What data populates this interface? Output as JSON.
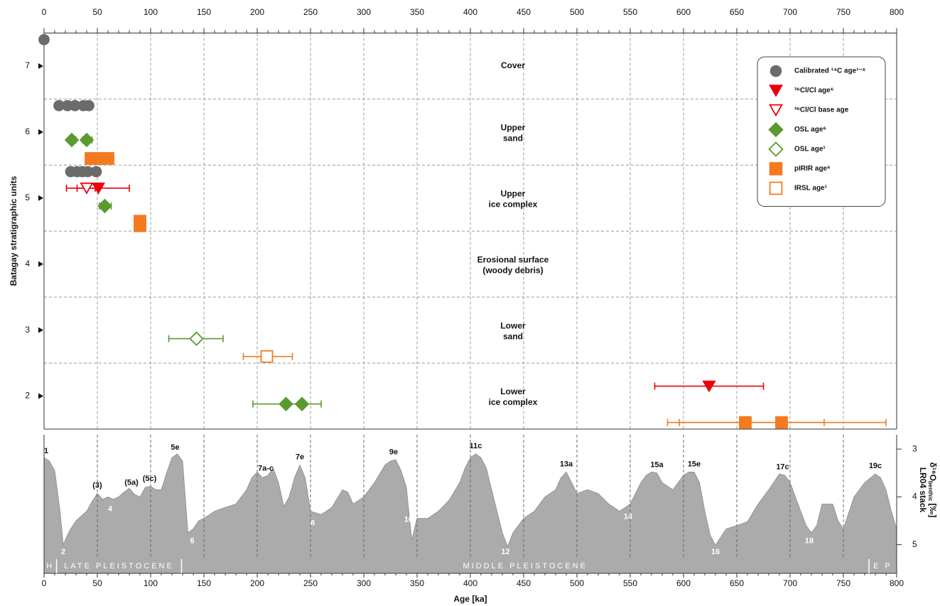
{
  "chart_data": [
    {
      "type": "scatter",
      "ylabel": "Batagay stratigraphic units",
      "xlim": [
        0,
        800
      ],
      "xticks": [
        0,
        50,
        100,
        150,
        200,
        250,
        300,
        350,
        400,
        450,
        500,
        550,
        600,
        650,
        700,
        750,
        800
      ],
      "ylim": [
        1.5,
        7.5
      ],
      "yticks": [
        2,
        3,
        4,
        5,
        6,
        7
      ],
      "unit_boundaries": [
        2.5,
        3.5,
        4.5,
        5.5,
        6.5
      ],
      "grid": true,
      "legend": "upper right",
      "units": [
        {
          "lines": [
            "Cover"
          ],
          "y": 7
        },
        {
          "lines": [
            "Upper",
            "sand"
          ],
          "y": 6
        },
        {
          "lines": [
            "Upper",
            "ice complex"
          ],
          "y": 5
        },
        {
          "lines": [
            "Erosional surface",
            "(woody debris)"
          ],
          "y": 4
        },
        {
          "lines": [
            "Lower",
            "sand"
          ],
          "y": 3
        },
        {
          "lines": [
            "Lower",
            "ice complex"
          ],
          "y": 2
        }
      ],
      "series": [
        {
          "name": "Calibrated ¹⁴C age¹⁻⁶",
          "marker": "circle",
          "filled": true,
          "color": "#6b6b6b",
          "x": [
            0,
            14,
            22,
            29,
            37,
            42,
            25,
            31,
            36,
            41,
            49
          ],
          "y": [
            7.4,
            6.4,
            6.4,
            6.4,
            6.4,
            6.4,
            5.4,
            5.4,
            5.4,
            5.4,
            5.4
          ]
        },
        {
          "name": "³⁶Cl/Cl age⁶",
          "marker": "triangle",
          "filled": true,
          "color": "#e8000b",
          "x": [
            51,
            624
          ],
          "y": [
            5.15,
            2.15
          ],
          "xmin": [
            21,
            573
          ],
          "xmax": [
            80,
            675
          ]
        },
        {
          "name": "³⁶Cl/Cl base age",
          "marker": "triangle",
          "filled": false,
          "color": "#e8000b",
          "x": [
            40
          ],
          "y": [
            5.15
          ],
          "xmin": [
            31
          ],
          "xmax": [
            48
          ]
        },
        {
          "name": "OSL age⁶",
          "marker": "diamond",
          "filled": true,
          "color": "#5b9a2e",
          "x": [
            26,
            40,
            57,
            227,
            242
          ],
          "y": [
            5.88,
            5.88,
            4.88,
            1.88,
            1.88
          ],
          "xmin": [
            23,
            36,
            52,
            196,
            226
          ],
          "xmax": [
            30,
            45,
            63,
            240,
            260
          ]
        },
        {
          "name": "OSL age¹",
          "marker": "diamond",
          "filled": false,
          "color": "#5b9a2e",
          "x": [
            143
          ],
          "y": [
            2.87
          ],
          "xmin": [
            117
          ],
          "xmax": [
            168
          ]
        },
        {
          "name": "pIRIR age⁶",
          "marker": "square",
          "filled": true,
          "color": "#f47a20",
          "x": [
            44,
            52,
            60,
            90,
            90,
            658,
            692
          ],
          "y": [
            5.6,
            5.6,
            5.6,
            4.65,
            4.58,
            1.6,
            1.6
          ],
          "xmin": [
            40,
            48,
            56,
            null,
            null,
            585,
            596
          ],
          "xmax": [
            48,
            56,
            65,
            null,
            null,
            732,
            790
          ]
        },
        {
          "name": "IRSL age¹",
          "marker": "square",
          "filled": false,
          "color": "#f47a20",
          "x": [
            209
          ],
          "y": [
            2.6
          ],
          "xmin": [
            187
          ],
          "xmax": [
            233
          ]
        }
      ]
    },
    {
      "type": "area",
      "ylabel": [
        "LR04 stack",
        "δ¹⁸O",
        "benthic",
        "[‰]"
      ],
      "xlabel": "Age [ka]",
      "xlim": [
        0,
        800
      ],
      "xticks": [
        0,
        50,
        100,
        150,
        200,
        250,
        300,
        350,
        400,
        450,
        500,
        550,
        600,
        650,
        700,
        750,
        800
      ],
      "ylim": [
        2.7,
        5.6
      ],
      "y_inverted": true,
      "yticks": [
        3,
        4,
        5
      ],
      "grid": true,
      "color": "#ababab",
      "x": [
        0,
        5,
        10,
        15,
        18,
        22,
        25,
        30,
        35,
        40,
        45,
        50,
        55,
        60,
        65,
        70,
        75,
        80,
        85,
        90,
        95,
        100,
        105,
        110,
        115,
        120,
        125,
        130,
        135,
        140,
        145,
        150,
        160,
        170,
        180,
        190,
        195,
        200,
        205,
        210,
        215,
        220,
        225,
        230,
        235,
        240,
        245,
        250,
        260,
        270,
        280,
        285,
        290,
        300,
        310,
        320,
        325,
        330,
        335,
        340,
        345,
        350,
        360,
        370,
        380,
        390,
        395,
        400,
        405,
        410,
        415,
        420,
        425,
        430,
        435,
        440,
        450,
        460,
        470,
        480,
        485,
        490,
        495,
        500,
        510,
        520,
        530,
        540,
        550,
        560,
        565,
        570,
        575,
        580,
        590,
        600,
        605,
        610,
        615,
        620,
        625,
        630,
        640,
        650,
        660,
        670,
        680,
        690,
        695,
        700,
        710,
        715,
        720,
        725,
        730,
        740,
        745,
        750,
        760,
        770,
        780,
        785,
        790,
        795,
        800
      ],
      "values": [
        3.18,
        3.25,
        3.45,
        4.3,
        5.0,
        4.8,
        4.67,
        4.5,
        4.4,
        4.3,
        4.1,
        3.93,
        4.05,
        4.0,
        4.05,
        4.0,
        3.9,
        3.82,
        3.95,
        4.0,
        3.8,
        3.78,
        3.85,
        3.85,
        3.5,
        3.18,
        3.1,
        3.25,
        4.75,
        4.67,
        4.5,
        4.45,
        4.3,
        4.22,
        4.15,
        3.85,
        3.6,
        3.48,
        3.6,
        3.55,
        3.4,
        3.7,
        4.2,
        4.0,
        3.6,
        3.33,
        3.6,
        4.3,
        4.37,
        4.22,
        3.85,
        3.9,
        4.15,
        4.0,
        3.7,
        3.33,
        3.25,
        3.22,
        3.45,
        3.8,
        4.9,
        4.45,
        4.45,
        4.3,
        4.07,
        3.7,
        3.4,
        3.18,
        3.1,
        3.18,
        3.4,
        3.85,
        4.3,
        4.75,
        5.04,
        4.75,
        4.45,
        4.3,
        4.0,
        3.85,
        3.6,
        3.48,
        3.7,
        3.93,
        3.85,
        3.93,
        4.15,
        4.3,
        4.15,
        3.7,
        3.55,
        3.48,
        3.5,
        3.7,
        3.85,
        3.55,
        3.48,
        3.48,
        3.7,
        4.3,
        4.8,
        5.01,
        4.67,
        4.6,
        4.52,
        4.15,
        3.85,
        3.52,
        3.55,
        3.7,
        4.3,
        4.6,
        4.75,
        4.6,
        4.15,
        4.15,
        4.5,
        4.67,
        4.0,
        3.7,
        3.52,
        3.6,
        3.85,
        4.3,
        4.67
      ],
      "peak_labels": [
        {
          "label": "1",
          "x": 2
        },
        {
          "label": "(3)",
          "x": 50
        },
        {
          "label": "(5a)",
          "x": 82
        },
        {
          "label": "(5c)",
          "x": 99
        },
        {
          "label": "5e",
          "x": 123
        },
        {
          "label": "7a-c",
          "x": 208
        },
        {
          "label": "7e",
          "x": 240
        },
        {
          "label": "9e",
          "x": 328
        },
        {
          "label": "11c",
          "x": 405
        },
        {
          "label": "13a",
          "x": 490
        },
        {
          "label": "15a",
          "x": 575
        },
        {
          "label": "15e",
          "x": 610
        },
        {
          "label": "17c",
          "x": 693
        },
        {
          "label": "19c",
          "x": 780
        }
      ],
      "trough_labels": [
        {
          "label": "2",
          "x": 18
        },
        {
          "label": "4",
          "x": 62
        },
        {
          "label": "6",
          "x": 139
        },
        {
          "label": "8",
          "x": 252
        },
        {
          "label": "10",
          "x": 342
        },
        {
          "label": "12",
          "x": 433
        },
        {
          "label": "14",
          "x": 548
        },
        {
          "label": "16",
          "x": 630
        },
        {
          "label": "18",
          "x": 718
        }
      ],
      "epochs": [
        {
          "label": "H",
          "start": 0,
          "end": 11.7
        },
        {
          "label": "LATE PLEISTOCENE",
          "start": 11.7,
          "end": 129
        },
        {
          "label": "MIDDLE PLEISTOCENE",
          "start": 129,
          "end": 774
        },
        {
          "label": "E P",
          "start": 774,
          "end": 800
        }
      ]
    }
  ]
}
